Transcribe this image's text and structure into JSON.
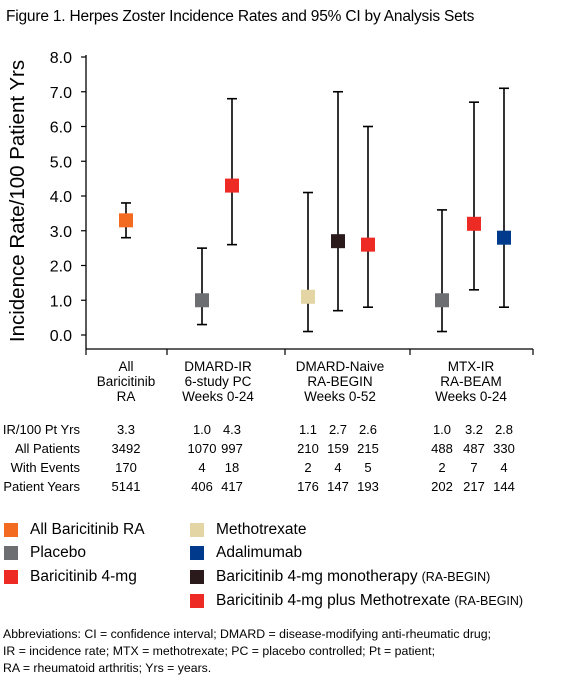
{
  "figure_title": "Figure 1. Herpes Zoster Incidence Rates and 95% CI by Analysis Sets",
  "chart_data": {
    "type": "scatter",
    "title": "Figure 1. Herpes Zoster Incidence Rates and 95% CI by Analysis Sets",
    "ylabel": "Incidence Rate/100 Patient Yrs",
    "xlabel": "",
    "ylim": [
      0,
      8
    ],
    "yticks": [
      "0.0",
      "1.0",
      "2.0",
      "3.0",
      "4.0",
      "5.0",
      "6.0",
      "7.0",
      "8.0"
    ],
    "grid": false,
    "legend_placement": "below",
    "groups": [
      {
        "label_lines": [
          "All",
          "Baricitinib",
          "RA"
        ]
      },
      {
        "label_lines": [
          "DMARD-IR",
          "6-study PC",
          "Weeks 0-24"
        ]
      },
      {
        "label_lines": [
          "DMARD-Naive",
          "RA-BEGIN",
          "Weeks 0-52"
        ]
      },
      {
        "label_lines": [
          "MTX-IR",
          "RA-BEAM",
          "Weeks 0-24"
        ]
      }
    ],
    "points": [
      {
        "group": 0,
        "series": "All Baricitinib RA",
        "value": 3.3,
        "ci": [
          2.8,
          3.8
        ]
      },
      {
        "group": 1,
        "series": "Placebo",
        "value": 1.0,
        "ci": [
          0.3,
          2.5
        ]
      },
      {
        "group": 1,
        "series": "Baricitinib 4-mg",
        "value": 4.3,
        "ci": [
          2.6,
          6.8
        ]
      },
      {
        "group": 2,
        "series": "Methotrexate",
        "value": 1.1,
        "ci": [
          0.1,
          4.1
        ]
      },
      {
        "group": 2,
        "series": "Baricitinib 4-mg monotherapy (RA-BEGIN)",
        "value": 2.7,
        "ci": [
          0.7,
          7.0
        ]
      },
      {
        "group": 2,
        "series": "Baricitinib 4-mg plus Methotrexate (RA-BEGIN)",
        "value": 2.6,
        "ci": [
          0.8,
          6.0
        ]
      },
      {
        "group": 3,
        "series": "Placebo",
        "value": 1.0,
        "ci": [
          0.1,
          3.6
        ]
      },
      {
        "group": 3,
        "series": "Baricitinib 4-mg",
        "value": 3.2,
        "ci": [
          1.3,
          6.7
        ]
      },
      {
        "group": 3,
        "series": "Adalimumab",
        "value": 2.8,
        "ci": [
          0.8,
          7.1
        ]
      }
    ],
    "series": [
      {
        "name": "All Baricitinib RA",
        "color": "#f26b21"
      },
      {
        "name": "Placebo",
        "color": "#6d6e71"
      },
      {
        "name": "Baricitinib 4-mg",
        "color": "#ee2a24"
      },
      {
        "name": "Methotrexate",
        "color": "#e3d5a4"
      },
      {
        "name": "Adalimumab",
        "color": "#003a8c"
      },
      {
        "name": "Baricitinib 4-mg monotherapy (RA-BEGIN)",
        "color": "#2a1a1c"
      },
      {
        "name": "Baricitinib 4-mg plus Methotrexate (RA-BEGIN)",
        "color": "#ee2a24"
      }
    ]
  },
  "table": {
    "row_labels": [
      "IR/100 Pt Yrs",
      "All Patients",
      "With Events",
      "Patient Years"
    ],
    "columns": [
      [
        "3.3",
        "3492",
        "170",
        "5141"
      ],
      [
        "1.0",
        "1070",
        "4",
        "406"
      ],
      [
        "4.3",
        "997",
        "18",
        "417"
      ],
      [
        "1.1",
        "210",
        "2",
        "176"
      ],
      [
        "2.7",
        "159",
        "4",
        "147"
      ],
      [
        "2.6",
        "215",
        "5",
        "193"
      ],
      [
        "1.0",
        "488",
        "2",
        "202"
      ],
      [
        "3.2",
        "487",
        "7",
        "217"
      ],
      [
        "2.8",
        "330",
        "4",
        "144"
      ]
    ]
  },
  "legend": [
    {
      "label": "All Baricitinib RA",
      "suffix": "",
      "color": "#f26b21"
    },
    {
      "label": "Placebo",
      "suffix": "",
      "color": "#6d6e71"
    },
    {
      "label": "Baricitinib 4-mg",
      "suffix": "",
      "color": "#ee2a24"
    },
    {
      "label": "Methotrexate",
      "suffix": "",
      "color": "#e3d5a4"
    },
    {
      "label": "Adalimumab",
      "suffix": "",
      "color": "#003a8c"
    },
    {
      "label": "Baricitinib 4-mg monotherapy",
      "suffix": "(RA-BEGIN)",
      "color": "#2a1a1c"
    },
    {
      "label": "Baricitinib 4-mg plus Methotrexate",
      "suffix": "(RA-BEGIN)",
      "color": "#ee2a24"
    }
  ],
  "footnote": [
    "Abbreviations: CI = confidence interval; DMARD = disease-modifying anti-rheumatic drug;",
    "IR = incidence rate; MTX = methotrexate; PC = placebo controlled; Pt = patient;",
    "RA = rheumatoid arthritis; Yrs = years."
  ]
}
